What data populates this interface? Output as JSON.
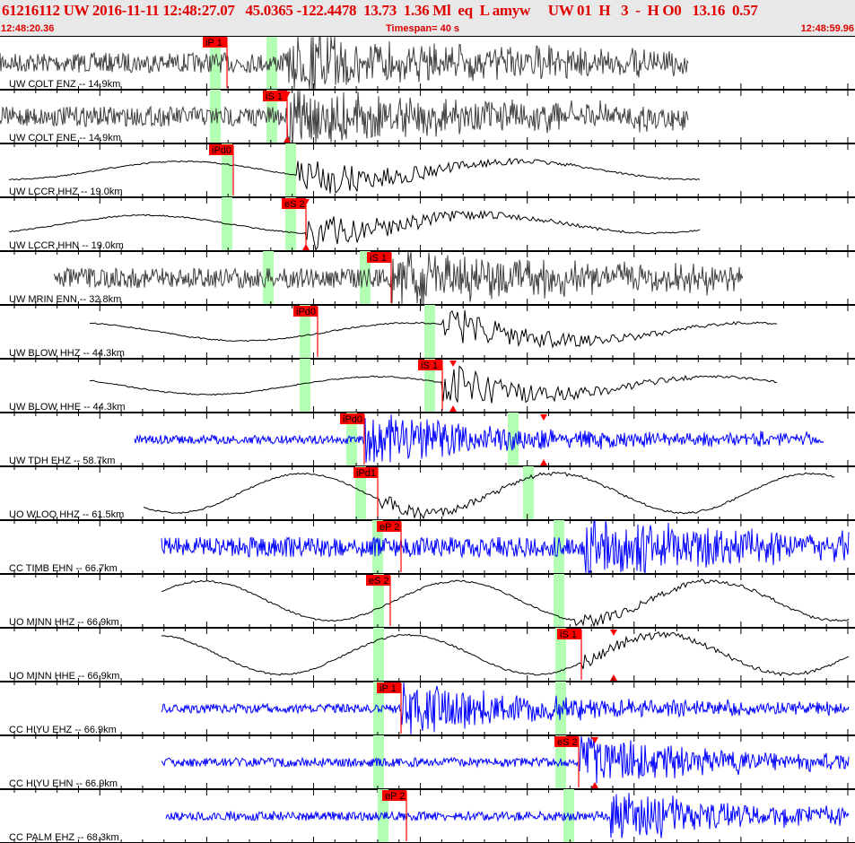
{
  "header": {
    "event_line": "61216112 UW 2016-11-11 12:48:27.07   45.0365 -122.4478  13.73  1.36 Ml  eq  L amyw     UW 01  H   3  -  H O0   13.16  0.57",
    "start_time": "12:48:20.36",
    "timespan": "Timespan=  40 s",
    "end_time": "12:48:59.96"
  },
  "colors": {
    "header_text": "#e00000",
    "pick_flag": "#ff0000",
    "window_band": "#b3ffb3",
    "trace_gray": "#404040",
    "trace_black": "#000000",
    "trace_blue": "#0000ff"
  },
  "channels": [
    {
      "label": "UW COLT ENZ -- 14.9km",
      "pick": "iP 1",
      "color": "gray"
    },
    {
      "label": "UW COLT ENE -- 14.9km",
      "pick": "iS 1",
      "color": "gray"
    },
    {
      "label": "UW LCCR HHZ -- 19.0km",
      "pick": "iPd0",
      "color": "black"
    },
    {
      "label": "UW LCCR HHN -- 19.0km",
      "pick": "eS 2",
      "color": "black"
    },
    {
      "label": "UW MRIN ENN -- 32.8km",
      "pick": "iS 1",
      "color": "gray"
    },
    {
      "label": "UW BLOW HHZ -- 44.3km",
      "pick": "iPd0",
      "color": "black"
    },
    {
      "label": "UW BLOW HHE -- 44.3km",
      "pick": "iS 1",
      "color": "black"
    },
    {
      "label": "UW TDH EHZ -- 58.7km",
      "pick": "iPd0",
      "color": "blue"
    },
    {
      "label": "UO WLOQ HHZ -- 61.5km",
      "pick": "iPd1",
      "color": "black"
    },
    {
      "label": "CC TIMB EHN -- 66.7km",
      "pick": "eP 2",
      "color": "blue"
    },
    {
      "label": "UO MINN HHZ -- 66.9km",
      "pick": "eS 2",
      "color": "black"
    },
    {
      "label": "UO MINN HHE -- 66.9km",
      "pick": "iS 1",
      "color": "black"
    },
    {
      "label": "CC HIYU EHZ -- 66.9km",
      "pick": "iP 1",
      "color": "blue"
    },
    {
      "label": "CC HIYU EHN -- 66.9km",
      "pick": "eS 2",
      "color": "blue"
    },
    {
      "label": "CC PALM EHZ -- 68.3km",
      "pick": "eP 2",
      "color": "blue"
    }
  ]
}
